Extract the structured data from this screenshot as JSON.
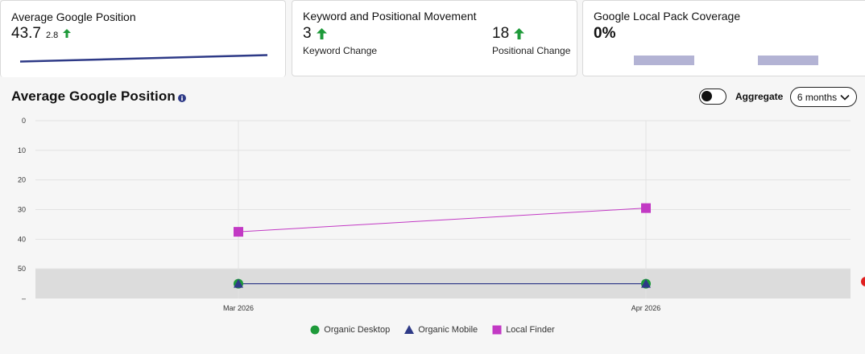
{
  "cards": {
    "avg_position": {
      "title": "Average Google Position",
      "value": "43.7",
      "delta": "2.8"
    },
    "movement": {
      "title": "Keyword and Positional Movement",
      "keyword_value": "3",
      "keyword_label": "Keyword Change",
      "positional_value": "18",
      "positional_label": "Positional Change"
    },
    "local_pack": {
      "title": "Google Local Pack Coverage",
      "value": "0%"
    }
  },
  "section": {
    "title": "Average Google Position",
    "info_icon": "info-icon"
  },
  "controls": {
    "aggregate_label": "Aggregate",
    "range_value": "6 months"
  },
  "colors": {
    "desktop": "#1e9a3a",
    "mobile": "#2e3a87",
    "local": "#c239c4",
    "up_arrow": "#1e9a3a",
    "sparkline": "#2e3a87"
  },
  "chart_data": {
    "type": "line",
    "x": [
      "Mar 2026",
      "Apr 2026"
    ],
    "y_reversed": true,
    "ylim": [
      0,
      60
    ],
    "yticks": [
      "0",
      "10",
      "20",
      "30",
      "40",
      "50",
      "–"
    ],
    "shaded_band": [
      50,
      60
    ],
    "grid": true,
    "legend_position": "bottom",
    "series": [
      {
        "name": "Organic Desktop",
        "marker": "circle",
        "values": [
          55,
          55
        ]
      },
      {
        "name": "Organic Mobile",
        "marker": "triangle",
        "values": [
          55,
          55
        ]
      },
      {
        "name": "Local Finder",
        "marker": "square",
        "values": [
          37.5,
          29.5
        ]
      }
    ]
  }
}
